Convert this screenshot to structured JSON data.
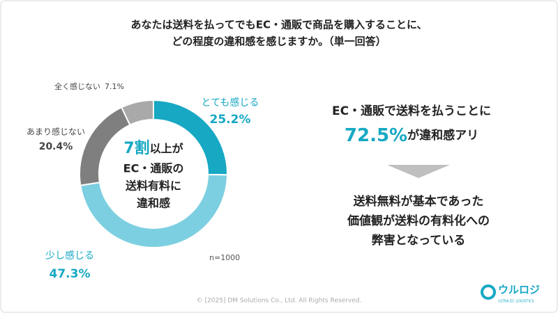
{
  "chart_data": {
    "type": "donut",
    "title": [
      "あなたは送料を払ってでもEC・通販で商品を購入することに、",
      "どの程度の違和感を感じますか。（単一回答）"
    ],
    "categories": [
      "とても感じる",
      "少し感じる",
      "あまり感じない",
      "全く感じない"
    ],
    "values": [
      25.2,
      47.3,
      20.4,
      7.1
    ],
    "value_labels": [
      "25.2%",
      "47.3%",
      "20.4%",
      "7.1%"
    ],
    "colors": [
      "#17a8c3",
      "#7ccfe0",
      "#7f7f7f",
      "#a9a9a9"
    ],
    "center_highlight": "7割",
    "center_lines": [
      "以上が",
      "EC・通販の",
      "送料有料に",
      "違和感"
    ],
    "note": "n=1000"
  },
  "summary": {
    "line1": "EC・通販で送料を払うことに",
    "highlight": "72.5%",
    "line2": "が違和感アリ",
    "conclusion": [
      "送料無料が基本であった",
      "価値観が送料の有料化への",
      "弊害となっている"
    ]
  },
  "footer": "© [2025] DM Solutions Co., Ltd. All Rights Reserved.",
  "logo": {
    "name": "ウルロジ",
    "tagline": "ULTRA EC LOGISTICS"
  }
}
